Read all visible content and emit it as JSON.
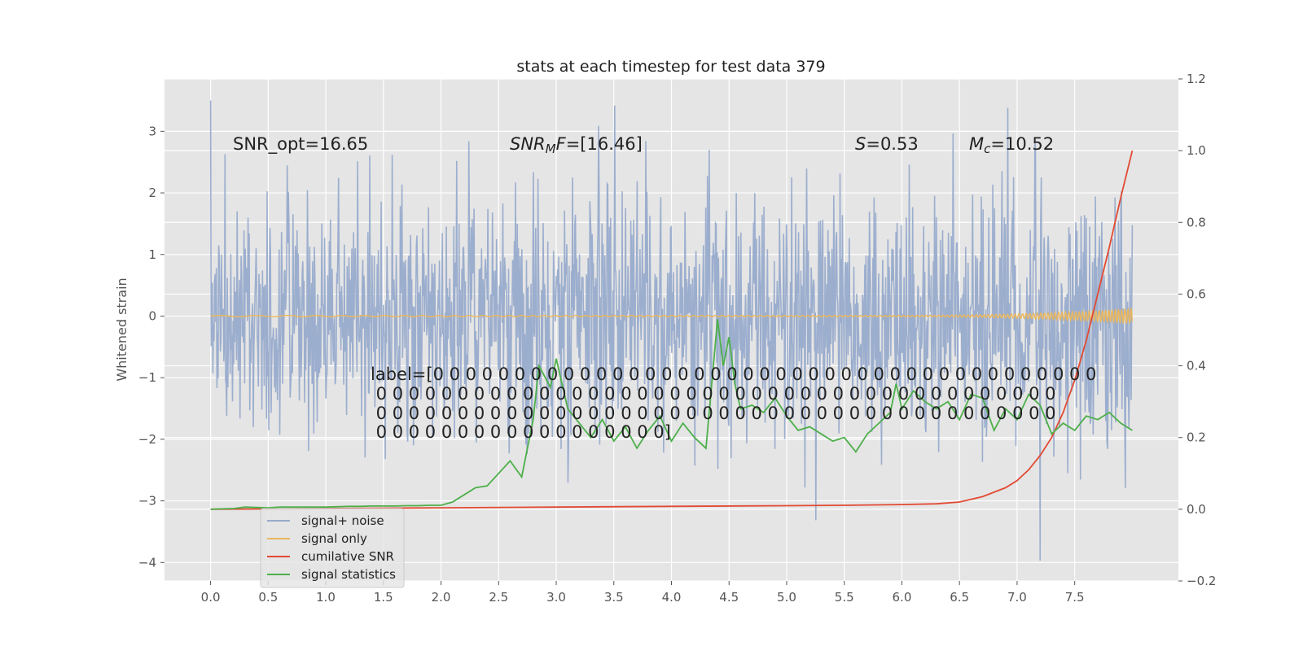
{
  "chart_data": {
    "type": "line",
    "title": "stats at each timestep for test data 379",
    "xlabel": "",
    "ylabel": "Whitened strain",
    "y2label": "",
    "xlim": [
      -0.4,
      8.4
    ],
    "ylim": [
      -4.3,
      3.85
    ],
    "y2lim": [
      -0.2,
      1.2
    ],
    "grid": true,
    "x_ticks": [
      0.0,
      0.5,
      1.0,
      1.5,
      2.0,
      2.5,
      3.0,
      3.5,
      4.0,
      4.5,
      5.0,
      5.5,
      6.0,
      6.5,
      7.0,
      7.5
    ],
    "x_tick_labels": [
      "0.0",
      "0.5",
      "1.0",
      "1.5",
      "2.0",
      "2.5",
      "3.0",
      "3.5",
      "4.0",
      "4.5",
      "5.0",
      "5.5",
      "6.0",
      "6.5",
      "7.0",
      "7.5"
    ],
    "y_ticks": [
      -4,
      -3,
      -2,
      -1,
      0,
      1,
      2,
      3
    ],
    "y_tick_labels": [
      "−4",
      "−3",
      "−2",
      "−1",
      "0",
      "1",
      "2",
      "3"
    ],
    "y2_ticks": [
      -0.2,
      0.0,
      0.2,
      0.4,
      0.6,
      0.8,
      1.0,
      1.2
    ],
    "y2_tick_labels": [
      "−0.2",
      "0.0",
      "0.2",
      "0.4",
      "0.6",
      "0.8",
      "1.0",
      "1.2"
    ],
    "legend_position": "lower-left",
    "annotations": {
      "snr_opt": "SNR_opt=16.65",
      "snr_mf": "SNR_MF=[16.46]",
      "s_value": "S=0.53",
      "mc_value": "M_c=10.52",
      "label_lines": [
        "label=[0 0 0 0 0 0 0 0 0 0 0 0 0 0 0 0 0 0 0 0 0 0 0 0 0 0 0 0 0 0 0 0 0 0 0 0 0 0 0 0 0",
        " 0 0 0 0 0 0 0 0 0 0 0 0 0 0 0 0 0 0 0 0 0 0 0 0 0 0 0 0 0 0 0 0 0 0 0 0 0 0 0 0 0 0",
        " 0 0 0 0 0 0 0 0 0 0 0 0 0 0 0 0 0 0 0 0 0 0 0 0 0 0 0 0 0 0 0 0 0 0 0 0 0 0 0 0 0 0",
        " 0 0 0 0 0 0 0 0 0 0 0 0 0 0 0 0 0 0]"
      ]
    },
    "series": [
      {
        "name": "signal+ noise",
        "axis": "left",
        "color": "#98abcc",
        "x_range": [
          0.0,
          8.0
        ],
        "n_samples": 1600,
        "std": 1.0,
        "min": -3.97,
        "max": 3.5,
        "note": "whitened gaussian noise plus weak chirp; dense high-frequency trace"
      },
      {
        "name": "signal only",
        "axis": "left",
        "color": "#e8b760",
        "x_range": [
          0.0,
          8.0
        ],
        "n_samples": 1600,
        "max_amplitude": 0.12,
        "note": "chirp near zero, amplitude grows after t=7.0"
      },
      {
        "name": "cumilative SNR",
        "axis": "right",
        "color": "#e24a33",
        "x": [
          0.0,
          1.0,
          2.0,
          3.0,
          4.0,
          5.0,
          5.5,
          6.0,
          6.3,
          6.5,
          6.7,
          6.9,
          7.0,
          7.1,
          7.2,
          7.3,
          7.4,
          7.5,
          7.6,
          7.7,
          7.8,
          7.9,
          8.0
        ],
        "values": [
          0.0,
          0.002,
          0.004,
          0.006,
          0.008,
          0.01,
          0.011,
          0.013,
          0.015,
          0.02,
          0.035,
          0.06,
          0.08,
          0.11,
          0.15,
          0.2,
          0.27,
          0.36,
          0.47,
          0.6,
          0.73,
          0.87,
          1.0
        ]
      },
      {
        "name": "signal statistics",
        "axis": "right",
        "color": "#4daf4a",
        "x": [
          0.0,
          0.1,
          0.2,
          0.3,
          0.4,
          0.5,
          0.6,
          0.7,
          0.8,
          0.9,
          1.0,
          1.1,
          1.2,
          1.3,
          1.4,
          1.5,
          1.6,
          1.7,
          1.8,
          1.9,
          2.0,
          2.1,
          2.2,
          2.3,
          2.4,
          2.5,
          2.6,
          2.7,
          2.8,
          2.85,
          2.9,
          2.95,
          3.0,
          3.1,
          3.2,
          3.3,
          3.4,
          3.5,
          3.6,
          3.7,
          3.8,
          3.9,
          4.0,
          4.1,
          4.2,
          4.3,
          4.4,
          4.45,
          4.5,
          4.55,
          4.6,
          4.7,
          4.8,
          4.9,
          5.0,
          5.1,
          5.2,
          5.3,
          5.4,
          5.5,
          5.6,
          5.7,
          5.8,
          5.9,
          5.95,
          6.0,
          6.1,
          6.2,
          6.3,
          6.4,
          6.5,
          6.6,
          6.7,
          6.8,
          6.9,
          7.0,
          7.1,
          7.2,
          7.3,
          7.4,
          7.5,
          7.6,
          7.7,
          7.8,
          7.9,
          8.0
        ],
        "values": [
          0.0,
          0.001,
          0.002,
          0.006,
          0.005,
          0.004,
          0.006,
          0.006,
          0.006,
          0.006,
          0.006,
          0.007,
          0.008,
          0.008,
          0.009,
          0.009,
          0.009,
          0.01,
          0.01,
          0.011,
          0.011,
          0.02,
          0.04,
          0.06,
          0.065,
          0.1,
          0.135,
          0.09,
          0.25,
          0.4,
          0.37,
          0.34,
          0.42,
          0.28,
          0.24,
          0.2,
          0.25,
          0.19,
          0.23,
          0.17,
          0.22,
          0.26,
          0.19,
          0.24,
          0.2,
          0.17,
          0.53,
          0.4,
          0.48,
          0.35,
          0.28,
          0.29,
          0.27,
          0.31,
          0.26,
          0.22,
          0.23,
          0.21,
          0.19,
          0.2,
          0.16,
          0.21,
          0.24,
          0.27,
          0.35,
          0.28,
          0.33,
          0.3,
          0.28,
          0.3,
          0.25,
          0.32,
          0.31,
          0.22,
          0.28,
          0.25,
          0.32,
          0.29,
          0.21,
          0.24,
          0.22,
          0.26,
          0.25,
          0.27,
          0.24,
          0.22
        ]
      }
    ]
  }
}
